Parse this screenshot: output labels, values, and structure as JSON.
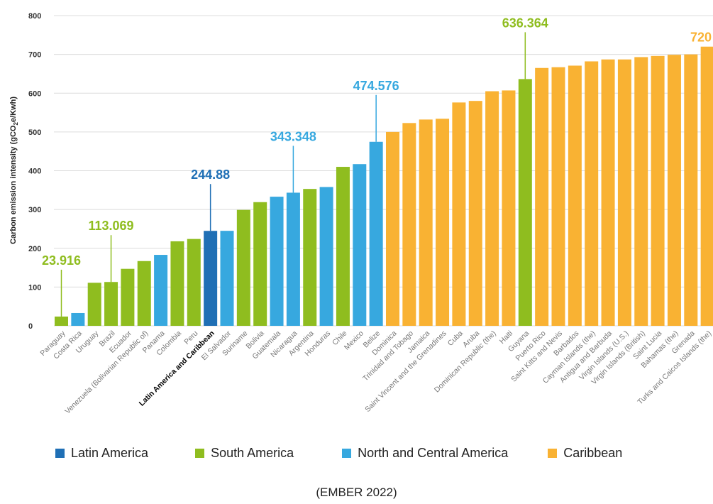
{
  "chart_data": {
    "type": "bar",
    "ylabel_parts": [
      "Carbon emission intensity (gCO",
      "2",
      "e/Kwh)"
    ],
    "ylim": [
      0,
      800
    ],
    "yticks": [
      "0",
      "100",
      "200",
      "300",
      "400",
      "500",
      "600",
      "700",
      "800"
    ],
    "grid": true,
    "legend_position": "bottom",
    "categories": [
      "Paraguay",
      "Costa Rica",
      "Uruguay",
      "Brazil",
      "Ecuador",
      "Venezuela (Bolivarian Republic of)",
      "Panama",
      "Colombia",
      "Peru",
      "Latin America and Caribbean",
      "El Salvador",
      "Suriname",
      "Bolivia",
      "Guatemala",
      "Nicaragua",
      "Argentina",
      "Honduras",
      "Chile",
      "Mexico",
      "Belize",
      "Dominica",
      "Trinidad and Tobago",
      "Jamaica",
      "Saint Vincent and the Grenadines",
      "Cuba",
      "Aruba",
      "Dominican Republic (the)",
      "Haiti",
      "Guyana",
      "Puerto Rico",
      "Saint Kitts and Nevis",
      "Barbados",
      "Cayman Islands (the)",
      "Antigua and Barbuda",
      "Virgin Islands (U.S.)",
      "Virgin Islands (British)",
      "Saint Lucia",
      "Bahamas (the)",
      "Grenada",
      "Turks and Caicos Islands (the)"
    ],
    "values": [
      23.916,
      33,
      111,
      113.069,
      147,
      167,
      183,
      218,
      224,
      244.88,
      245,
      299,
      319,
      333,
      343.348,
      353,
      358,
      410,
      417,
      474.576,
      500,
      523,
      532,
      534,
      576,
      580,
      605,
      607,
      636.364,
      665,
      667,
      671,
      682,
      687,
      687,
      693,
      696,
      699,
      700,
      720
    ],
    "groups": [
      "South America",
      "North and Central America",
      "South America",
      "South America",
      "South America",
      "South America",
      "North and Central America",
      "South America",
      "South America",
      "Latin America",
      "North and Central America",
      "South America",
      "South America",
      "North and Central America",
      "North and Central America",
      "South America",
      "North and Central America",
      "South America",
      "North and Central America",
      "North and Central America",
      "Caribbean",
      "Caribbean",
      "Caribbean",
      "Caribbean",
      "Caribbean",
      "Caribbean",
      "Caribbean",
      "Caribbean",
      "South America",
      "Caribbean",
      "Caribbean",
      "Caribbean",
      "Caribbean",
      "Caribbean",
      "Caribbean",
      "Caribbean",
      "Caribbean",
      "Caribbean",
      "Caribbean",
      "Caribbean"
    ],
    "highlight_category": "Latin America and Caribbean",
    "annotations": [
      {
        "category": "Paraguay",
        "text": "23.916",
        "value": 23.916
      },
      {
        "category": "Brazil",
        "text": "113.069",
        "value": 113.069
      },
      {
        "category": "Latin America and Caribbean",
        "text": "244.88",
        "value": 244.88
      },
      {
        "category": "Nicaragua",
        "text": "343.348",
        "value": 343.348
      },
      {
        "category": "Belize",
        "text": "474.576",
        "value": 474.576
      },
      {
        "category": "Guyana",
        "text": "636.364",
        "value": 636.364
      },
      {
        "category": "Turks and Caicos Islands (the)",
        "text": "720",
        "value": 720
      }
    ],
    "legend": [
      {
        "name": "Latin America",
        "color": "#1f6fb5"
      },
      {
        "name": "South America",
        "color": "#8fbd1f"
      },
      {
        "name": "North and Central America",
        "color": "#37a8df"
      },
      {
        "name": "Caribbean",
        "color": "#f9b233"
      }
    ]
  },
  "source": "(EMBER 2022)"
}
